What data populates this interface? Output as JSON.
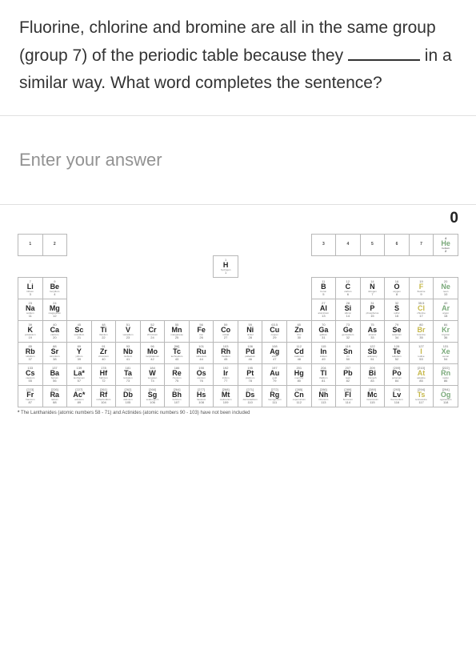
{
  "question": {
    "line1": "Fluorine, chlorine and bromine are all in the same group (group 7) of the periodic table because they ",
    "line2": " in a similar way. What word completes the sentence?"
  },
  "answer": {
    "placeholder": "Enter your answer"
  },
  "score": {
    "value": "0"
  },
  "footnote": "The Lanthanides (atomic numbers 58 - 71) and Actinides (atomic numbers 90 - 103) have not been included",
  "group_labels": {
    "g1": "1",
    "g2": "2",
    "g3": "3",
    "g4": "4",
    "g5": "5",
    "g6": "6",
    "g7": "7",
    "g8": "He"
  },
  "elements": {
    "H": {
      "z": "1",
      "sym": "H",
      "name": "hydrogen",
      "mass": "1"
    },
    "He": {
      "z": "2",
      "sym": "He",
      "name": "helium",
      "mass": "4"
    },
    "Li": {
      "z": "3",
      "sym": "Li",
      "name": "lithium",
      "mass": "7"
    },
    "Be": {
      "z": "4",
      "sym": "Be",
      "name": "beryllium",
      "mass": "9"
    },
    "B": {
      "z": "5",
      "sym": "B",
      "name": "boron",
      "mass": "11"
    },
    "C": {
      "z": "6",
      "sym": "C",
      "name": "carbon",
      "mass": "12"
    },
    "N": {
      "z": "7",
      "sym": "N",
      "name": "nitrogen",
      "mass": "14"
    },
    "O": {
      "z": "8",
      "sym": "O",
      "name": "oxygen",
      "mass": "16"
    },
    "F": {
      "z": "9",
      "sym": "F",
      "name": "fluorine",
      "mass": "19"
    },
    "Ne": {
      "z": "10",
      "sym": "Ne",
      "name": "neon",
      "mass": "20"
    },
    "Na": {
      "z": "11",
      "sym": "Na",
      "name": "sodium",
      "mass": "23"
    },
    "Mg": {
      "z": "12",
      "sym": "Mg",
      "name": "magnesium",
      "mass": "24"
    },
    "Al": {
      "z": "13",
      "sym": "Al",
      "name": "aluminium",
      "mass": "27"
    },
    "Si": {
      "z": "14",
      "sym": "Si",
      "name": "silicon",
      "mass": "28"
    },
    "P": {
      "z": "15",
      "sym": "P",
      "name": "phosphorus",
      "mass": "31"
    },
    "S": {
      "z": "16",
      "sym": "S",
      "name": "sulfur",
      "mass": "32"
    },
    "Cl": {
      "z": "17",
      "sym": "Cl",
      "name": "chlorine",
      "mass": "35.5"
    },
    "Ar": {
      "z": "18",
      "sym": "Ar",
      "name": "argon",
      "mass": "40"
    },
    "K": {
      "z": "19",
      "sym": "K",
      "name": "potassium",
      "mass": "39"
    },
    "Ca": {
      "z": "20",
      "sym": "Ca",
      "name": "calcium",
      "mass": "40"
    },
    "Sc": {
      "z": "21",
      "sym": "Sc",
      "name": "scandium",
      "mass": "45"
    },
    "Ti": {
      "z": "22",
      "sym": "Ti",
      "name": "titanium",
      "mass": "48"
    },
    "V": {
      "z": "23",
      "sym": "V",
      "name": "vanadium",
      "mass": "51"
    },
    "Cr": {
      "z": "24",
      "sym": "Cr",
      "name": "chromium",
      "mass": "52"
    },
    "Mn": {
      "z": "25",
      "sym": "Mn",
      "name": "manganese",
      "mass": "55"
    },
    "Fe": {
      "z": "26",
      "sym": "Fe",
      "name": "iron",
      "mass": "56"
    },
    "Co": {
      "z": "27",
      "sym": "Co",
      "name": "cobalt",
      "mass": "59"
    },
    "Ni": {
      "z": "28",
      "sym": "Ni",
      "name": "nickel",
      "mass": "59"
    },
    "Cu": {
      "z": "29",
      "sym": "Cu",
      "name": "copper",
      "mass": "63.5"
    },
    "Zn": {
      "z": "30",
      "sym": "Zn",
      "name": "zinc",
      "mass": "65"
    },
    "Ga": {
      "z": "31",
      "sym": "Ga",
      "name": "gallium",
      "mass": "70"
    },
    "Ge": {
      "z": "32",
      "sym": "Ge",
      "name": "germanium",
      "mass": "73"
    },
    "As": {
      "z": "33",
      "sym": "As",
      "name": "arsenic",
      "mass": "75"
    },
    "Se": {
      "z": "34",
      "sym": "Se",
      "name": "selenium",
      "mass": "79"
    },
    "Br": {
      "z": "35",
      "sym": "Br",
      "name": "bromine",
      "mass": "80"
    },
    "Kr": {
      "z": "36",
      "sym": "Kr",
      "name": "krypton",
      "mass": "84"
    },
    "Rb": {
      "z": "37",
      "sym": "Rb",
      "name": "rubidium",
      "mass": "85"
    },
    "Sr": {
      "z": "38",
      "sym": "Sr",
      "name": "strontium",
      "mass": "88"
    },
    "Y": {
      "z": "39",
      "sym": "Y",
      "name": "yttrium",
      "mass": "89"
    },
    "Zr": {
      "z": "40",
      "sym": "Zr",
      "name": "zirconium",
      "mass": "91"
    },
    "Nb": {
      "z": "41",
      "sym": "Nb",
      "name": "niobium",
      "mass": "93"
    },
    "Mo": {
      "z": "42",
      "sym": "Mo",
      "name": "molybdenum",
      "mass": "96"
    },
    "Tc": {
      "z": "43",
      "sym": "Tc",
      "name": "technetium",
      "mass": "[98]"
    },
    "Ru": {
      "z": "44",
      "sym": "Ru",
      "name": "ruthenium",
      "mass": "101"
    },
    "Rh": {
      "z": "45",
      "sym": "Rh",
      "name": "rhodium",
      "mass": "103"
    },
    "Pd": {
      "z": "46",
      "sym": "Pd",
      "name": "palladium",
      "mass": "106"
    },
    "Ag": {
      "z": "47",
      "sym": "Ag",
      "name": "silver",
      "mass": "108"
    },
    "Cd": {
      "z": "48",
      "sym": "Cd",
      "name": "cadmium",
      "mass": "112"
    },
    "In": {
      "z": "49",
      "sym": "In",
      "name": "indium",
      "mass": "115"
    },
    "Sn": {
      "z": "50",
      "sym": "Sn",
      "name": "tin",
      "mass": "119"
    },
    "Sb": {
      "z": "51",
      "sym": "Sb",
      "name": "antimony",
      "mass": "122"
    },
    "Te": {
      "z": "52",
      "sym": "Te",
      "name": "tellurium",
      "mass": "128"
    },
    "I": {
      "z": "53",
      "sym": "I",
      "name": "iodine",
      "mass": "127"
    },
    "Xe": {
      "z": "54",
      "sym": "Xe",
      "name": "xenon",
      "mass": "131"
    },
    "Cs": {
      "z": "55",
      "sym": "Cs",
      "name": "caesium",
      "mass": "133"
    },
    "Ba": {
      "z": "56",
      "sym": "Ba",
      "name": "barium",
      "mass": "137"
    },
    "La": {
      "z": "57",
      "sym": "La*",
      "name": "lanthanum",
      "mass": "139"
    },
    "Hf": {
      "z": "72",
      "sym": "Hf",
      "name": "hafnium",
      "mass": "178"
    },
    "Ta": {
      "z": "73",
      "sym": "Ta",
      "name": "tantalum",
      "mass": "181"
    },
    "W": {
      "z": "74",
      "sym": "W",
      "name": "tungsten",
      "mass": "184"
    },
    "Re": {
      "z": "75",
      "sym": "Re",
      "name": "rhenium",
      "mass": "186"
    },
    "Os": {
      "z": "76",
      "sym": "Os",
      "name": "osmium",
      "mass": "190"
    },
    "Ir": {
      "z": "77",
      "sym": "Ir",
      "name": "iridium",
      "mass": "192"
    },
    "Pt": {
      "z": "78",
      "sym": "Pt",
      "name": "platinum",
      "mass": "195"
    },
    "Au": {
      "z": "79",
      "sym": "Au",
      "name": "gold",
      "mass": "197"
    },
    "Hg": {
      "z": "80",
      "sym": "Hg",
      "name": "mercury",
      "mass": "201"
    },
    "Tl": {
      "z": "81",
      "sym": "Tl",
      "name": "thallium",
      "mass": "204"
    },
    "Pb": {
      "z": "82",
      "sym": "Pb",
      "name": "lead",
      "mass": "207"
    },
    "Bi": {
      "z": "83",
      "sym": "Bi",
      "name": "bismuth",
      "mass": "209"
    },
    "Po": {
      "z": "84",
      "sym": "Po",
      "name": "polonium",
      "mass": "[209]"
    },
    "At": {
      "z": "85",
      "sym": "At",
      "name": "astatine",
      "mass": "[210]"
    },
    "Rn": {
      "z": "86",
      "sym": "Rn",
      "name": "radon",
      "mass": "[222]"
    },
    "Fr": {
      "z": "87",
      "sym": "Fr",
      "name": "francium",
      "mass": "[223]"
    },
    "Ra": {
      "z": "88",
      "sym": "Ra",
      "name": "radium",
      "mass": "[226]"
    },
    "Ac": {
      "z": "89",
      "sym": "Ac*",
      "name": "actinium",
      "mass": "[227]"
    },
    "Rf": {
      "z": "104",
      "sym": "Rf",
      "name": "rutherfordium",
      "mass": "[261]"
    },
    "Db": {
      "z": "105",
      "sym": "Db",
      "name": "dubnium",
      "mass": "[262]"
    },
    "Sg": {
      "z": "106",
      "sym": "Sg",
      "name": "seaborgium",
      "mass": "[266]"
    },
    "Bh": {
      "z": "107",
      "sym": "Bh",
      "name": "bohrium",
      "mass": "[264]"
    },
    "Hs": {
      "z": "108",
      "sym": "Hs",
      "name": "hassium",
      "mass": "[277]"
    },
    "Mt": {
      "z": "109",
      "sym": "Mt",
      "name": "meitnerium",
      "mass": "[268]"
    },
    "Ds": {
      "z": "110",
      "sym": "Ds",
      "name": "darmstadtium",
      "mass": "[271]"
    },
    "Rg": {
      "z": "111",
      "sym": "Rg",
      "name": "roentgenium",
      "mass": "[272]"
    },
    "Cn": {
      "z": "112",
      "sym": "Cn",
      "name": "copernicium",
      "mass": "[285]"
    },
    "Nh": {
      "z": "113",
      "sym": "Nh",
      "name": "nihonium",
      "mass": "[286]"
    },
    "Fl": {
      "z": "114",
      "sym": "Fl",
      "name": "flerovium",
      "mass": "[289]"
    },
    "Mc": {
      "z": "115",
      "sym": "Mc",
      "name": "moscovium",
      "mass": "[289]"
    },
    "Lv": {
      "z": "116",
      "sym": "Lv",
      "name": "livermorium",
      "mass": "[293]"
    },
    "Ts": {
      "z": "117",
      "sym": "Ts",
      "name": "tennessine",
      "mass": "[294]"
    },
    "Og": {
      "z": "118",
      "sym": "Og",
      "name": "oganesson",
      "mass": "[294]"
    }
  }
}
